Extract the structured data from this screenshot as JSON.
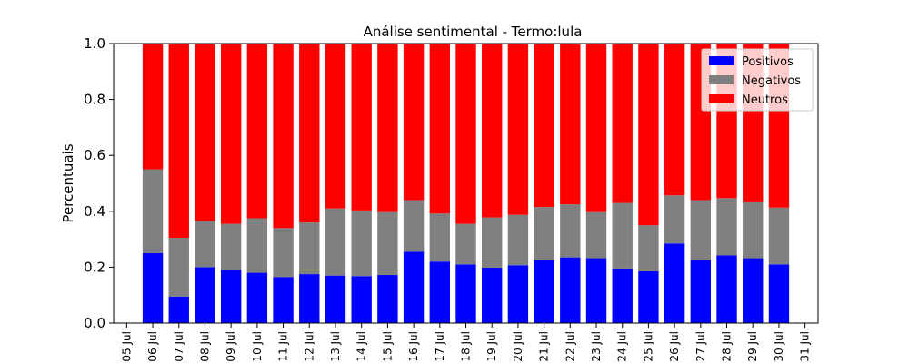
{
  "chart_data": {
    "type": "bar",
    "stacked": true,
    "title": "Análise sentimental - Termo:lula",
    "xlabel": "",
    "ylabel": "Percentuais",
    "ylim": [
      0,
      1.0
    ],
    "yticks": [
      "0.0",
      "0.2",
      "0.4",
      "0.6",
      "0.8",
      "1.0"
    ],
    "ytick_values": [
      0,
      0.2,
      0.4,
      0.6,
      0.8,
      1.0
    ],
    "legend_position": "top-right",
    "xtick_labels": [
      "05 Jul",
      "06 Jul",
      "07 Jul",
      "08 Jul",
      "09 Jul",
      "10 Jul",
      "11 Jul",
      "12 Jul",
      "13 Jul",
      "14 Jul",
      "15 Jul",
      "16 Jul",
      "17 Jul",
      "18 Jul",
      "19 Jul",
      "20 Jul",
      "21 Jul",
      "22 Jul",
      "23 Jul",
      "24 Jul",
      "25 Jul",
      "26 Jul",
      "27 Jul",
      "28 Jul",
      "29 Jul",
      "30 Jul",
      "31 Jul"
    ],
    "categories": [
      "06 Jul",
      "07 Jul",
      "08 Jul",
      "09 Jul",
      "10 Jul",
      "11 Jul",
      "12 Jul",
      "13 Jul",
      "14 Jul",
      "15 Jul",
      "16 Jul",
      "17 Jul",
      "18 Jul",
      "19 Jul",
      "20 Jul",
      "21 Jul",
      "22 Jul",
      "23 Jul",
      "24 Jul",
      "25 Jul",
      "26 Jul",
      "27 Jul",
      "28 Jul",
      "29 Jul",
      "30 Jul"
    ],
    "series": [
      {
        "name": "Positivos",
        "color": "#0000ff",
        "values": [
          0.25,
          0.095,
          0.2,
          0.19,
          0.18,
          0.165,
          0.175,
          0.17,
          0.168,
          0.172,
          0.255,
          0.22,
          0.21,
          0.198,
          0.207,
          0.225,
          0.235,
          0.232,
          0.195,
          0.185,
          0.285,
          0.225,
          0.242,
          0.232,
          0.21
        ]
      },
      {
        "name": "Negativos",
        "color": "#808080",
        "values": [
          0.3,
          0.21,
          0.165,
          0.165,
          0.195,
          0.175,
          0.185,
          0.24,
          0.235,
          0.225,
          0.185,
          0.172,
          0.145,
          0.18,
          0.18,
          0.19,
          0.19,
          0.165,
          0.235,
          0.165,
          0.172,
          0.215,
          0.205,
          0.2,
          0.203
        ]
      },
      {
        "name": "Neutros",
        "color": "#ff0000",
        "values": [
          0.45,
          0.695,
          0.635,
          0.645,
          0.625,
          0.66,
          0.64,
          0.59,
          0.597,
          0.603,
          0.56,
          0.608,
          0.645,
          0.622,
          0.613,
          0.585,
          0.575,
          0.603,
          0.57,
          0.65,
          0.543,
          0.56,
          0.553,
          0.568,
          0.587
        ]
      }
    ]
  }
}
